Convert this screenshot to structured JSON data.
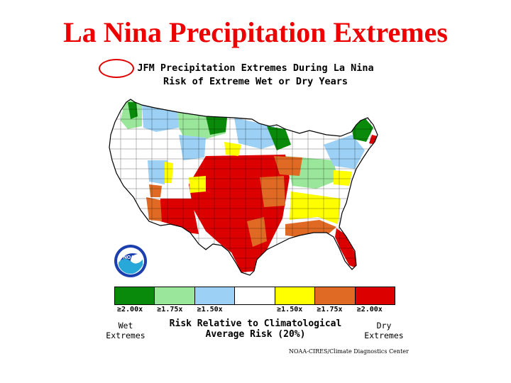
{
  "slide": {
    "title": "La Nina Precipitation Extremes"
  },
  "map": {
    "season": "JFM",
    "title_rest": " Precipitation Extremes During La Nina",
    "subtitle": "Risk of Extreme Wet or Dry Years",
    "region": "Contiguous United States climate divisions"
  },
  "legend": {
    "categories": [
      {
        "label": "≥2.00x",
        "color": "#0a8a0a",
        "type": "wet"
      },
      {
        "label": "≥1.75x",
        "color": "#9ae69a",
        "type": "wet"
      },
      {
        "label": "≥1.50x",
        "color": "#9cd0f5",
        "type": "wet"
      },
      {
        "label": "",
        "color": "#ffffff",
        "type": "neutral"
      },
      {
        "label": "≥1.50x",
        "color": "#ffff00",
        "type": "dry"
      },
      {
        "label": "≥1.75x",
        "color": "#e06a24",
        "type": "dry"
      },
      {
        "label": "≥2.00x",
        "color": "#dd0000",
        "type": "dry"
      }
    ],
    "wet_label_line1": "Wet",
    "wet_label_line2": "Extremes",
    "dry_label_line1": "Dry",
    "dry_label_line2": "Extremes",
    "risk_line1": "Risk Relative to Climatological",
    "risk_line2": "Average Risk (20%)"
  },
  "logo": {
    "text": "NOAA",
    "icon": "noaa-logo-icon"
  },
  "credit": "NOAA-CIRES/Climate Diagnostics Center"
}
